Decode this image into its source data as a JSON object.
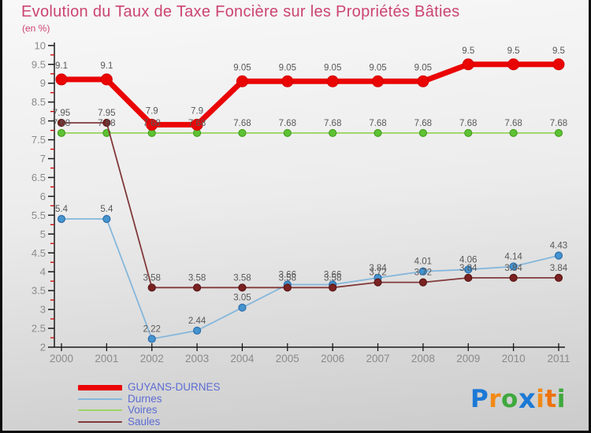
{
  "title": {
    "text": "Evolution du Taux de Taxe Foncière sur les Propriétés Bâties",
    "subtitle": "(en %)",
    "color": "#cc4470"
  },
  "axis": {
    "line_color": "#1a1a1a",
    "minor_tick_color": "#cc0000",
    "tick_label_color": "#8a8a8a",
    "value_label_color": "#585858"
  },
  "chart_data": {
    "type": "line",
    "title": "Evolution du Taux de Taxe Foncière sur les Propriétés Bâties",
    "subtitle": "(en %)",
    "xlabel": "",
    "ylabel": "en %",
    "x": [
      2000,
      2001,
      2002,
      2003,
      2004,
      2005,
      2006,
      2007,
      2008,
      2009,
      2010,
      2011
    ],
    "ylim": [
      2,
      10
    ],
    "y_major_step": 0.5,
    "y_minor_step": 0.25,
    "grid": false,
    "legend_position": "bottom-left",
    "series": [
      {
        "id": "guyans-durnes",
        "name": "GUYANS-DURNES",
        "line_color": "#ea0505",
        "line_width": 7,
        "marker_radius": 7,
        "marker_fill": "#ea0505",
        "marker_stroke": "#d40000",
        "marker_stroke_width": 1,
        "label_offset": 14,
        "values": [
          9.1,
          9.1,
          7.9,
          7.9,
          9.05,
          9.05,
          9.05,
          9.05,
          9.05,
          9.5,
          9.5,
          9.5
        ]
      },
      {
        "id": "durnes",
        "name": "Durnes",
        "line_color": "#85b7dc",
        "line_width": 1.8,
        "marker_radius": 4.5,
        "marker_fill": "#4494d0",
        "marker_stroke": "#2e6da8",
        "marker_stroke_width": 1.2,
        "label_offset": 9,
        "values": [
          5.4,
          5.4,
          2.22,
          2.44,
          3.05,
          3.66,
          3.66,
          3.84,
          4.01,
          4.06,
          4.14,
          4.43
        ]
      },
      {
        "id": "voires",
        "name": "Voires",
        "line_color": "#9bd464",
        "line_width": 1.8,
        "marker_radius": 4.5,
        "marker_fill": "#5ec234",
        "marker_stroke": "#44a01f",
        "marker_stroke_width": 1.2,
        "label_offset": 9,
        "values": [
          7.68,
          7.68,
          7.68,
          7.68,
          7.68,
          7.68,
          7.68,
          7.68,
          7.68,
          7.68,
          7.68,
          7.68
        ]
      },
      {
        "id": "saules",
        "name": "Saules",
        "line_color": "#81393b",
        "line_width": 1.8,
        "marker_radius": 4.5,
        "marker_fill": "#7a2222",
        "marker_stroke": "#5c1616",
        "marker_stroke_width": 1.2,
        "label_offset": 9,
        "values": [
          7.95,
          7.95,
          3.58,
          3.58,
          3.58,
          3.58,
          3.58,
          3.72,
          3.72,
          3.84,
          3.84,
          3.84
        ]
      }
    ]
  },
  "legend": {
    "text_color": "#5c6cd2",
    "items": [
      {
        "label": "GUYANS-DURNES",
        "color": "#ea0505",
        "thickness": 7
      },
      {
        "label": "Durnes",
        "color": "#85b7dc",
        "thickness": 2
      },
      {
        "label": "Voires",
        "color": "#9bd464",
        "thickness": 2
      },
      {
        "label": "Saules",
        "color": "#81393b",
        "thickness": 2
      }
    ]
  },
  "logo": {
    "text": "Proxiti",
    "letters": [
      {
        "char": "P",
        "color": "#1c79d6"
      },
      {
        "char": "r",
        "color": "#f28a16"
      },
      {
        "char": "o",
        "color": "#3fa93e"
      },
      {
        "char": "x",
        "color": "#1c79d6",
        "bold": true
      },
      {
        "char": "i",
        "color": "#f28a16"
      },
      {
        "char": "t",
        "color": "#ee720e"
      },
      {
        "char": "i",
        "color": "#3fa93e"
      }
    ]
  }
}
